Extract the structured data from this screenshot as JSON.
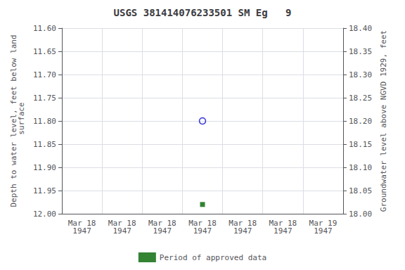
{
  "chart_data": {
    "type": "scatter",
    "title": "USGS 381414076233501 SM Eg   9",
    "ylabel": "Depth to water level, feet below land\n surface",
    "y2label": "Groundwater level above NGVD 1929, feet",
    "categories": [
      "Mar 18\n1947",
      "Mar 18\n1947",
      "Mar 18\n1947",
      "Mar 18\n1947",
      "Mar 18\n1947",
      "Mar 18\n1947",
      "Mar 19\n1947"
    ],
    "series": [
      {
        "color": "#0000cc",
        "marker": "open_circle",
        "axis": "y",
        "values": [
          null,
          null,
          null,
          11.8,
          null,
          null,
          null
        ]
      },
      {
        "name": "Period of approved data",
        "color": "#006400",
        "marker": "square",
        "axis": "y",
        "values": [
          null,
          null,
          null,
          11.98,
          null,
          null,
          null
        ]
      }
    ],
    "ylim": [
      12.0,
      11.6
    ],
    "yticks": [
      {
        "value": 11.6,
        "label": "11.60"
      },
      {
        "value": 11.65,
        "label": "11.65"
      },
      {
        "value": 11.7,
        "label": "11.70"
      },
      {
        "value": 11.75,
        "label": "11.75"
      },
      {
        "value": 11.8,
        "label": "11.80"
      },
      {
        "value": 11.85,
        "label": "11.85"
      },
      {
        "value": 11.9,
        "label": "11.90"
      },
      {
        "value": 11.95,
        "label": "11.95"
      },
      {
        "value": 12.0,
        "label": "12.00"
      }
    ],
    "y2lim": [
      18.0,
      18.4
    ],
    "y2ticks": [
      {
        "value": 18.0,
        "label": "18.00"
      },
      {
        "value": 18.05,
        "label": "18.05"
      },
      {
        "value": 18.1,
        "label": "18.10"
      },
      {
        "value": 18.15,
        "label": "18.15"
      },
      {
        "value": 18.2,
        "label": "18.20"
      },
      {
        "value": 18.25,
        "label": "18.25"
      },
      {
        "value": 18.3,
        "label": "18.30"
      },
      {
        "value": 18.35,
        "label": "18.35"
      },
      {
        "value": 18.4,
        "label": "18.40"
      }
    ],
    "grid": true,
    "legend": "bottom"
  }
}
